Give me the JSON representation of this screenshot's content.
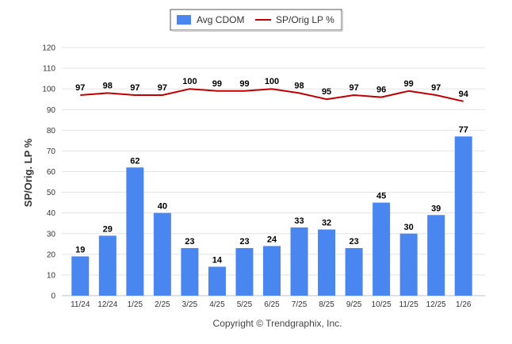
{
  "chart_data": {
    "type": "bar",
    "categories": [
      "11/24",
      "12/24",
      "1/25",
      "2/25",
      "3/25",
      "4/25",
      "5/25",
      "6/25",
      "7/25",
      "8/25",
      "9/25",
      "10/25",
      "11/25",
      "12/25",
      "1/26"
    ],
    "series": [
      {
        "name": "Avg CDOM",
        "type": "bar",
        "color": "#4a86f0",
        "values": [
          19,
          29,
          62,
          40,
          23,
          14,
          23,
          24,
          33,
          32,
          23,
          45,
          30,
          39,
          77
        ]
      },
      {
        "name": "SP/Orig LP %",
        "type": "line",
        "color": "#c00000",
        "values": [
          97,
          98,
          97,
          97,
          100,
          99,
          99,
          100,
          98,
          95,
          97,
          96,
          99,
          97,
          94
        ]
      }
    ],
    "ylabel": "SP/Orig. LP %",
    "ylim": [
      0,
      120
    ],
    "yticks": [
      0,
      10,
      20,
      30,
      40,
      50,
      60,
      70,
      80,
      90,
      100,
      110,
      120
    ],
    "grid": true,
    "legend_placement": "top-center"
  },
  "footer": {
    "credit": "Copyright © Trendgraphix, Inc."
  }
}
